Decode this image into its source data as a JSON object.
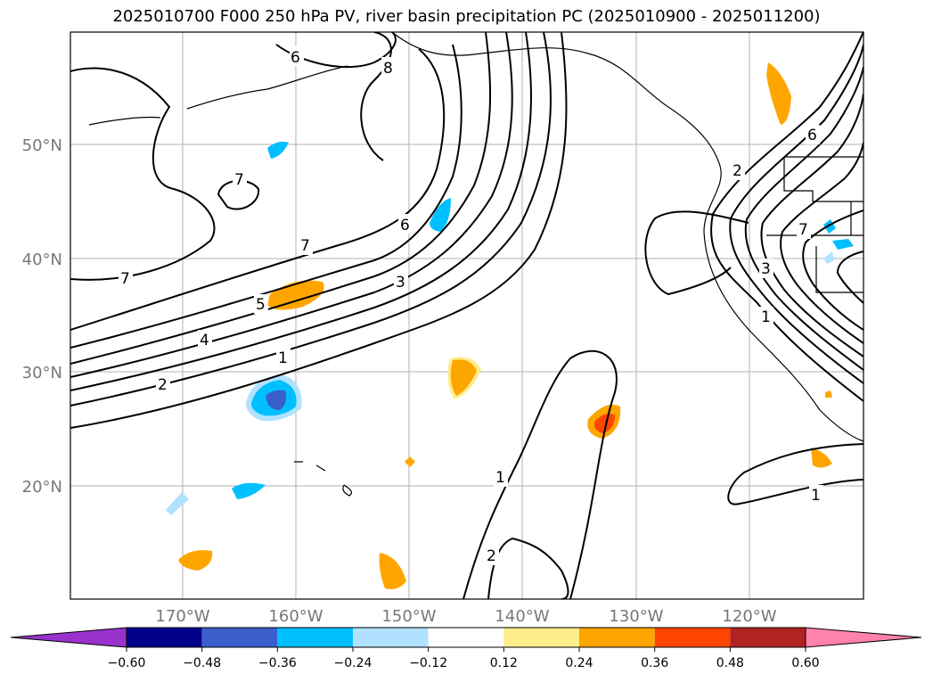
{
  "title": "2025010700 F000 250 hPa PV, river basin precipitation PC (2025010900 - 2025011200)",
  "lat_labels": [
    "50°N",
    "40°N",
    "30°N",
    "20°N"
  ],
  "lon_labels": [
    "170°W",
    "160°W",
    "150°W",
    "140°W",
    "130°W",
    "120°W"
  ],
  "contour_labels": [
    "6",
    "8",
    "7",
    "7",
    "6",
    "7",
    "5",
    "4",
    "3",
    "2",
    "1",
    "1",
    "2",
    "1",
    "2",
    "3",
    "1",
    "6",
    "7"
  ],
  "colorbar": {
    "ticks": [
      "−0.60",
      "−0.48",
      "−0.36",
      "−0.24",
      "−0.12",
      "0.12",
      "0.24",
      "0.36",
      "0.48",
      "0.60"
    ],
    "colors": [
      "#9932cc",
      "#00008b",
      "#3a5fcd",
      "#00bfff",
      "#b0e2ff",
      "#ffffff",
      "#ffec8b",
      "#ffa500",
      "#ff4500",
      "#b22222",
      "#ff82ab"
    ]
  }
}
